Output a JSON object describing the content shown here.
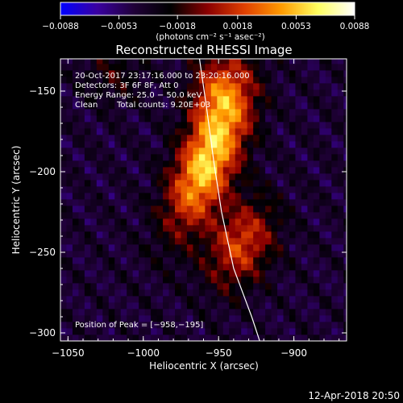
{
  "chart_data": {
    "type": "heatmap",
    "title": "Reconstructed RHESSI Image",
    "xlabel": "Heliocentric X (arcsec)",
    "ylabel": "Heliocentric Y (arcsec)",
    "xlim": [
      -1055,
      -865
    ],
    "ylim": [
      -305,
      -130
    ],
    "x_ticks": [
      -1050,
      -1000,
      -950,
      -900
    ],
    "x_tick_labels": [
      "−1050",
      "−1000",
      "−950",
      "−900"
    ],
    "y_ticks": [
      -150,
      -200,
      -250,
      -300
    ],
    "y_tick_labels": [
      "−150",
      "−200",
      "−250",
      "−300"
    ],
    "colorbar": {
      "range": [
        -0.0088,
        0.0088
      ],
      "tick_values": [
        -0.0088,
        -0.0053,
        -0.0018,
        0.0018,
        0.0053,
        0.0088
      ],
      "tick_labels": [
        "−0.0088",
        "−0.0053",
        "−0.0018",
        "0.0018",
        "0.0053",
        "0.0088"
      ],
      "unit_label": "(photons cm⁻² s⁻¹ asec⁻²)",
      "colors": [
        "#0000ff",
        "#3a00a0",
        "#200038",
        "#000000",
        "#8a0000",
        "#e04000",
        "#ff9a00",
        "#ffff60",
        "#ffffff"
      ]
    },
    "info": {
      "line1": "20‑Oct‑2017 23:17:16.000 to 23:20:16.000",
      "line2": "Detectors: 3F 6F 8F, Att 0",
      "line3": "Energy Range: 25.0 − 50.0 keV",
      "line4_label": "Clean",
      "line4_counts": "Total counts: 9.20E+03"
    },
    "peak_label": "Position of Peak = [−958,−195]",
    "peak": {
      "x": -958,
      "y": -195,
      "value": 0.0088
    },
    "sources": [
      {
        "x": -958,
        "y": -195,
        "amplitude": 0.0098,
        "sigma_major": 30,
        "sigma_minor": 13,
        "angle_deg": 65
      },
      {
        "x": -948,
        "y": -150,
        "amplitude": 0.0058,
        "sigma_major": 18,
        "sigma_minor": 14,
        "angle_deg": 80
      },
      {
        "x": -935,
        "y": -245,
        "amplitude": 0.0058,
        "sigma_major": 20,
        "sigma_minor": 14,
        "angle_deg": 60
      },
      {
        "x": -1020,
        "y": -140,
        "amplitude": 0.002,
        "sigma_major": 14,
        "sigma_minor": 12,
        "angle_deg": 0
      }
    ],
    "background_value": -0.004,
    "limb": [
      [
        -963,
        -128
      ],
      [
        -958,
        -160
      ],
      [
        -953,
        -195
      ],
      [
        -948,
        -225
      ],
      [
        -940,
        -260
      ],
      [
        -928,
        -290
      ],
      [
        -922,
        -307
      ]
    ]
  },
  "footer": {
    "timestamp": "12‑Apr‑2018 20:50"
  }
}
